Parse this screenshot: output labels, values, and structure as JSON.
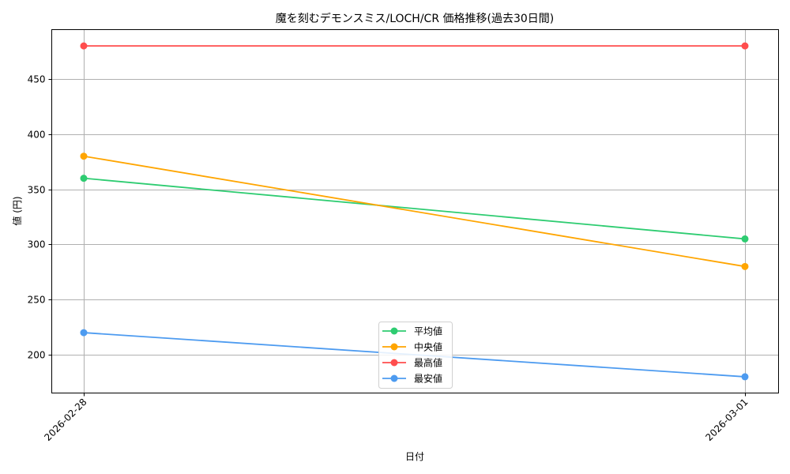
{
  "chart_data": {
    "type": "line",
    "title": "魔を刻むデモンスミス/LOCH/CR 価格推移(過去30日間)",
    "xlabel": "日付",
    "ylabel": "値 (円)",
    "x": [
      "2026-02-28",
      "2026-03-01"
    ],
    "series": [
      {
        "name": "平均値",
        "color": "#2ecc71",
        "values": [
          360,
          305
        ]
      },
      {
        "name": "中央値",
        "color": "#ffa500",
        "values": [
          380,
          280
        ]
      },
      {
        "name": "最高値",
        "color": "#ff4d4d",
        "values": [
          480,
          480
        ]
      },
      {
        "name": "最安値",
        "color": "#4d9bf0",
        "values": [
          220,
          180
        ]
      }
    ],
    "yticks": [
      200,
      250,
      300,
      350,
      400,
      450
    ],
    "ylim": [
      165,
      495
    ],
    "grid": true,
    "legend_position": "lower center"
  }
}
